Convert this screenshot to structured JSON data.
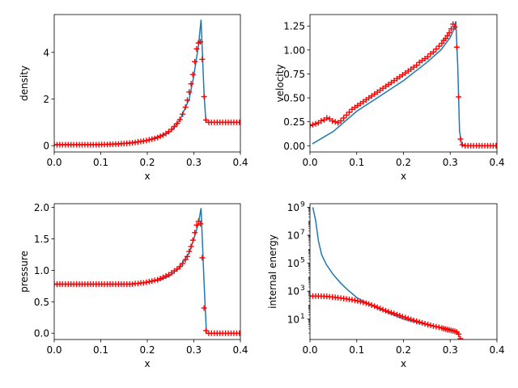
{
  "chart_data": [
    {
      "type": "line",
      "xlabel": "x",
      "ylabel": "density",
      "xlim": [
        0,
        0.4
      ],
      "ylim": [
        -0.27,
        5.62
      ],
      "yscale": "linear",
      "xticks": [
        0,
        0.1,
        0.2,
        0.3,
        0.4
      ],
      "xtick_labels": [
        "0.0",
        "0.1",
        "0.2",
        "0.3",
        "0.4"
      ],
      "yticks": [
        0,
        2,
        4
      ],
      "ytick_labels": [
        "0",
        "2",
        "4"
      ],
      "series": [
        {
          "style": "line",
          "color": "#1f77b4",
          "x": [
            0.0,
            0.05,
            0.1,
            0.15,
            0.2,
            0.25,
            0.27,
            0.29,
            0.3,
            0.31,
            0.3155,
            0.322,
            0.326,
            0.4
          ],
          "y": [
            0.04,
            0.04,
            0.05,
            0.1,
            0.22,
            0.6,
            1.1,
            2.0,
            3.0,
            4.3,
            5.4,
            2.2,
            1.0,
            1.0
          ]
        },
        {
          "style": "markers",
          "marker": "+",
          "color": "#ff0000",
          "x": [
            0.0,
            0.006,
            0.012,
            0.018,
            0.024,
            0.03,
            0.036,
            0.042,
            0.048,
            0.054,
            0.06,
            0.066,
            0.072,
            0.078,
            0.084,
            0.09,
            0.096,
            0.102,
            0.108,
            0.114,
            0.12,
            0.126,
            0.132,
            0.138,
            0.144,
            0.15,
            0.156,
            0.162,
            0.168,
            0.174,
            0.18,
            0.186,
            0.192,
            0.198,
            0.204,
            0.21,
            0.216,
            0.222,
            0.228,
            0.234,
            0.24,
            0.246,
            0.252,
            0.258,
            0.264,
            0.27,
            0.276,
            0.282,
            0.286,
            0.29,
            0.294,
            0.298,
            0.302,
            0.306,
            0.31,
            0.314,
            0.318,
            0.322,
            0.326,
            0.332,
            0.338,
            0.344,
            0.35,
            0.356,
            0.362,
            0.368,
            0.374,
            0.38,
            0.386,
            0.392,
            0.398
          ],
          "y": [
            0.04,
            0.04,
            0.04,
            0.04,
            0.04,
            0.04,
            0.04,
            0.04,
            0.04,
            0.04,
            0.04,
            0.04,
            0.04,
            0.04,
            0.04,
            0.04,
            0.04,
            0.05,
            0.05,
            0.05,
            0.06,
            0.06,
            0.07,
            0.07,
            0.08,
            0.09,
            0.1,
            0.11,
            0.12,
            0.14,
            0.16,
            0.18,
            0.2,
            0.22,
            0.25,
            0.28,
            0.31,
            0.35,
            0.4,
            0.45,
            0.52,
            0.6,
            0.7,
            0.82,
            0.95,
            1.12,
            1.35,
            1.65,
            1.95,
            2.3,
            2.65,
            3.05,
            3.6,
            4.15,
            4.4,
            4.45,
            3.7,
            2.1,
            1.1,
            1.0,
            1.0,
            1.0,
            1.0,
            1.0,
            1.0,
            1.0,
            1.0,
            1.0,
            1.0,
            1.0,
            1.0
          ]
        }
      ]
    },
    {
      "type": "line",
      "xlabel": "x",
      "ylabel": "velocity",
      "xlim": [
        0,
        0.4
      ],
      "ylim": [
        -0.065,
        1.37
      ],
      "yscale": "linear",
      "xticks": [
        0,
        0.1,
        0.2,
        0.3,
        0.4
      ],
      "xtick_labels": [
        "0.0",
        "0.1",
        "0.2",
        "0.3",
        "0.4"
      ],
      "yticks": [
        0,
        0.25,
        0.5,
        0.75,
        1.0,
        1.25
      ],
      "ytick_labels": [
        "0.00",
        "0.25",
        "0.50",
        "0.75",
        "1.00",
        "1.25"
      ],
      "series": [
        {
          "style": "line",
          "color": "#1f77b4",
          "x": [
            0.005,
            0.05,
            0.1,
            0.15,
            0.2,
            0.25,
            0.28,
            0.3,
            0.308,
            0.312,
            0.316,
            0.32,
            0.325,
            0.4
          ],
          "y": [
            0.02,
            0.15,
            0.36,
            0.52,
            0.68,
            0.87,
            1.0,
            1.13,
            1.22,
            1.3,
            0.85,
            0.15,
            0.0,
            0.0
          ]
        },
        {
          "style": "markers",
          "marker": "+",
          "color": "#ff0000",
          "x": [
            0.0,
            0.006,
            0.012,
            0.018,
            0.024,
            0.03,
            0.036,
            0.042,
            0.048,
            0.054,
            0.06,
            0.066,
            0.072,
            0.078,
            0.084,
            0.09,
            0.096,
            0.102,
            0.108,
            0.114,
            0.12,
            0.126,
            0.132,
            0.138,
            0.144,
            0.15,
            0.156,
            0.162,
            0.168,
            0.174,
            0.18,
            0.186,
            0.192,
            0.198,
            0.204,
            0.21,
            0.216,
            0.222,
            0.228,
            0.234,
            0.24,
            0.246,
            0.252,
            0.258,
            0.264,
            0.27,
            0.276,
            0.282,
            0.286,
            0.29,
            0.294,
            0.298,
            0.302,
            0.306,
            0.31,
            0.314,
            0.318,
            0.322,
            0.326,
            0.332,
            0.338,
            0.344,
            0.35,
            0.356,
            0.362,
            0.368,
            0.374,
            0.38,
            0.386,
            0.392,
            0.398
          ],
          "y": [
            0.21,
            0.22,
            0.23,
            0.24,
            0.26,
            0.27,
            0.29,
            0.28,
            0.26,
            0.25,
            0.24,
            0.26,
            0.29,
            0.32,
            0.35,
            0.38,
            0.4,
            0.42,
            0.44,
            0.46,
            0.48,
            0.5,
            0.52,
            0.54,
            0.56,
            0.58,
            0.6,
            0.62,
            0.64,
            0.66,
            0.68,
            0.7,
            0.72,
            0.74,
            0.76,
            0.78,
            0.8,
            0.82,
            0.84,
            0.87,
            0.89,
            0.91,
            0.93,
            0.96,
            0.98,
            1.01,
            1.04,
            1.07,
            1.1,
            1.12,
            1.15,
            1.18,
            1.22,
            1.27,
            1.24,
            1.03,
            0.51,
            0.07,
            0.01,
            0.0,
            0.0,
            0.0,
            0.0,
            0.0,
            0.0,
            0.0,
            0.0,
            0.0,
            0.0,
            0.0,
            0.0
          ]
        }
      ]
    },
    {
      "type": "line",
      "xlabel": "x",
      "ylabel": "pressure",
      "xlim": [
        0,
        0.4
      ],
      "ylim": [
        -0.1,
        2.06
      ],
      "yscale": "linear",
      "xticks": [
        0,
        0.1,
        0.2,
        0.3,
        0.4
      ],
      "xtick_labels": [
        "0.0",
        "0.1",
        "0.2",
        "0.3",
        "0.4"
      ],
      "yticks": [
        0,
        0.5,
        1.0,
        1.5,
        2.0
      ],
      "ytick_labels": [
        "0.0",
        "0.5",
        "1.0",
        "1.5",
        "2.0"
      ],
      "series": [
        {
          "style": "line",
          "color": "#1f77b4",
          "x": [
            0.0,
            0.05,
            0.1,
            0.15,
            0.18,
            0.2,
            0.23,
            0.25,
            0.27,
            0.29,
            0.3,
            0.31,
            0.3155,
            0.322,
            0.327,
            0.4
          ],
          "y": [
            0.78,
            0.78,
            0.78,
            0.78,
            0.79,
            0.81,
            0.85,
            0.92,
            1.05,
            1.28,
            1.5,
            1.75,
            1.99,
            0.8,
            0.0,
            0.0
          ]
        },
        {
          "style": "markers",
          "marker": "+",
          "color": "#ff0000",
          "x": [
            0.0,
            0.006,
            0.012,
            0.018,
            0.024,
            0.03,
            0.036,
            0.042,
            0.048,
            0.054,
            0.06,
            0.066,
            0.072,
            0.078,
            0.084,
            0.09,
            0.096,
            0.102,
            0.108,
            0.114,
            0.12,
            0.126,
            0.132,
            0.138,
            0.144,
            0.15,
            0.156,
            0.162,
            0.168,
            0.174,
            0.18,
            0.186,
            0.192,
            0.198,
            0.204,
            0.21,
            0.216,
            0.222,
            0.228,
            0.234,
            0.24,
            0.246,
            0.252,
            0.258,
            0.264,
            0.27,
            0.276,
            0.282,
            0.286,
            0.29,
            0.294,
            0.298,
            0.302,
            0.306,
            0.31,
            0.314,
            0.318,
            0.322,
            0.326,
            0.332,
            0.338,
            0.344,
            0.35,
            0.356,
            0.362,
            0.368,
            0.374,
            0.38,
            0.386,
            0.392,
            0.398
          ],
          "y": [
            0.78,
            0.78,
            0.78,
            0.78,
            0.78,
            0.78,
            0.78,
            0.78,
            0.78,
            0.78,
            0.78,
            0.78,
            0.78,
            0.78,
            0.78,
            0.78,
            0.78,
            0.78,
            0.78,
            0.78,
            0.78,
            0.78,
            0.78,
            0.78,
            0.78,
            0.78,
            0.78,
            0.78,
            0.78,
            0.79,
            0.79,
            0.8,
            0.8,
            0.81,
            0.82,
            0.83,
            0.84,
            0.85,
            0.87,
            0.89,
            0.91,
            0.93,
            0.96,
            0.99,
            1.02,
            1.06,
            1.11,
            1.17,
            1.22,
            1.3,
            1.38,
            1.48,
            1.6,
            1.72,
            1.78,
            1.74,
            1.2,
            0.4,
            0.04,
            0.0,
            0.0,
            0.0,
            0.0,
            0.0,
            0.0,
            0.0,
            0.0,
            0.0,
            0.0,
            0.0,
            0.0
          ]
        }
      ]
    },
    {
      "type": "line",
      "xlabel": "x",
      "ylabel": "internal energy",
      "xlim": [
        0,
        0.4
      ],
      "ylim": [
        0.35,
        1800000000.0
      ],
      "yscale": "log",
      "xticks": [
        0,
        0.1,
        0.2,
        0.3,
        0.4
      ],
      "xtick_labels": [
        "0.0",
        "0.1",
        "0.2",
        "0.3",
        "0.4"
      ],
      "yticks": [
        10,
        1000,
        100000,
        10000000,
        1000000000
      ],
      "ytick_labels": [
        "10",
        "10",
        "10",
        "10",
        "10"
      ],
      "ytick_exponents": [
        "1",
        "3",
        "5",
        "7",
        "9"
      ],
      "series": [
        {
          "style": "line",
          "color": "#1f77b4",
          "x": [
            0.006,
            0.012,
            0.018,
            0.025,
            0.035,
            0.05,
            0.065,
            0.08,
            0.1,
            0.12,
            0.15,
            0.2,
            0.25,
            0.3,
            0.316,
            0.32
          ],
          "y": [
            1000000000.0,
            120000000.0,
            4000000.0,
            400000.0,
            80000.0,
            15000.0,
            4000,
            1300,
            350,
            150,
            50,
            10,
            4,
            1.9,
            1.2,
            0.5
          ]
        },
        {
          "style": "markers",
          "marker": "+",
          "color": "#ff0000",
          "x": [
            0.0,
            0.006,
            0.012,
            0.018,
            0.024,
            0.03,
            0.036,
            0.042,
            0.048,
            0.054,
            0.06,
            0.066,
            0.072,
            0.078,
            0.084,
            0.09,
            0.096,
            0.102,
            0.108,
            0.114,
            0.12,
            0.126,
            0.132,
            0.138,
            0.144,
            0.15,
            0.156,
            0.162,
            0.168,
            0.174,
            0.18,
            0.186,
            0.192,
            0.198,
            0.204,
            0.21,
            0.216,
            0.222,
            0.228,
            0.234,
            0.24,
            0.246,
            0.252,
            0.258,
            0.264,
            0.27,
            0.276,
            0.282,
            0.286,
            0.29,
            0.294,
            0.298,
            0.302,
            0.306,
            0.31,
            0.314,
            0.318,
            0.322
          ],
          "y": [
            450,
            450,
            450,
            445,
            440,
            430,
            420,
            400,
            380,
            360,
            340,
            320,
            300,
            280,
            260,
            240,
            220,
            200,
            180,
            160,
            140,
            120,
            100,
            85,
            70,
            58,
            48,
            40,
            34,
            29,
            25,
            21,
            18,
            15,
            13,
            11,
            9.5,
            8.2,
            7.1,
            6.2,
            5.4,
            4.7,
            4.1,
            3.6,
            3.2,
            2.9,
            2.6,
            2.3,
            2.1,
            1.95,
            1.8,
            1.7,
            1.55,
            1.45,
            1.35,
            1.2,
            0.85,
            0.4
          ]
        }
      ]
    }
  ]
}
